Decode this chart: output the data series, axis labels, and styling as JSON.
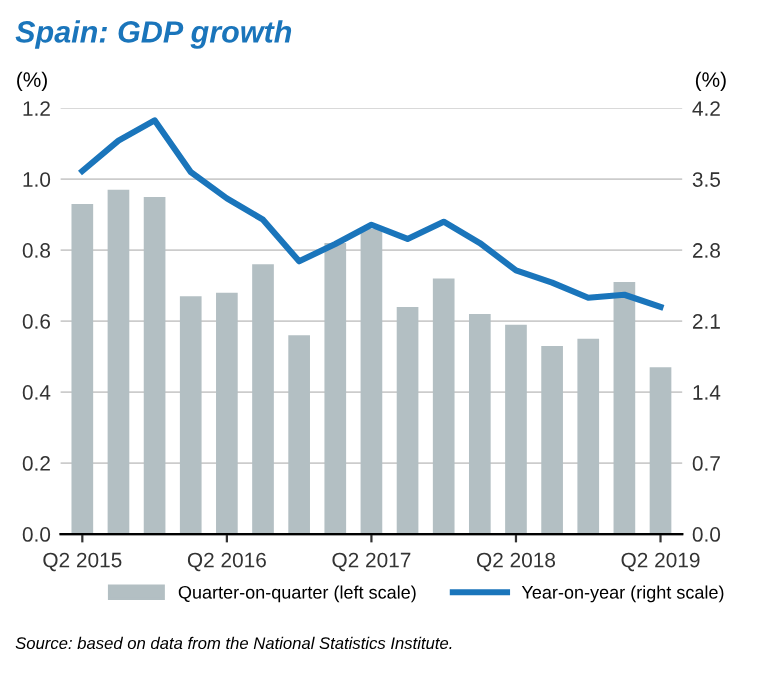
{
  "chart_data": {
    "type": "bar",
    "title": "Spain: GDP growth",
    "ylabel": "(%)",
    "y2label": "(%)",
    "categories": [
      "Q2 2015",
      null,
      null,
      null,
      "Q2 2016",
      null,
      null,
      null,
      "Q2 2017",
      null,
      null,
      null,
      "Q2 2018",
      null,
      null,
      null,
      "Q2 2019"
    ],
    "series": [
      {
        "name": "Quarter-on-quarter (left scale)",
        "color": "#b3bfc3",
        "values": [
          0.93,
          0.97,
          0.95,
          0.67,
          0.68,
          0.76,
          0.56,
          0.82,
          0.86,
          0.64,
          0.72,
          0.62,
          0.59,
          0.53,
          0.55,
          0.71,
          0.47
        ]
      },
      {
        "name": "Year-on-year (right scale)",
        "type": "line",
        "axis": "y2",
        "color": "#1a75bb",
        "values": [
          3.58,
          3.88,
          4.08,
          3.57,
          3.31,
          3.1,
          2.69,
          2.86,
          3.05,
          2.91,
          3.08,
          2.87,
          2.6,
          2.48,
          2.33,
          2.36,
          2.24
        ]
      }
    ],
    "ylim": [
      0,
      1.2
    ],
    "yticks": [
      {
        "value": 0,
        "label": "0.0"
      },
      {
        "value": 0.2,
        "label": "0.2"
      },
      {
        "value": 0.4,
        "label": "0.4"
      },
      {
        "value": 0.6,
        "label": "0.6"
      },
      {
        "value": 0.8,
        "label": "0.8"
      },
      {
        "value": 1.0,
        "label": "1.0"
      },
      {
        "value": 1.2,
        "label": "1.2"
      }
    ],
    "y2lim": [
      0,
      4.2
    ],
    "y2ticks": [
      {
        "value": 0,
        "label": "0.0"
      },
      {
        "value": 0.7,
        "label": "0.7"
      },
      {
        "value": 1.4,
        "label": "1.4"
      },
      {
        "value": 2.1,
        "label": "2.1"
      },
      {
        "value": 2.8,
        "label": "2.8"
      },
      {
        "value": 3.5,
        "label": "3.5"
      },
      {
        "value": 4.2,
        "label": "4.2"
      }
    ],
    "grid": "y",
    "legend": "bottom",
    "annotations": [
      "Source: based on data from the National Statistics Institute."
    ]
  }
}
